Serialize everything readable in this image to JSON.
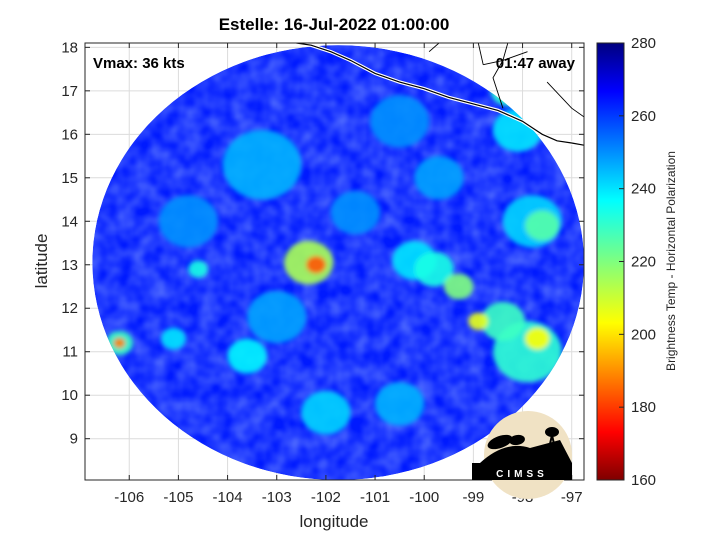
{
  "chart_data": {
    "type": "heatmap",
    "title": "Estelle: 16-Jul-2022 01:00:00",
    "xlabel": "longitude",
    "ylabel": "latitude",
    "xlim": [
      -106.9,
      -96.75
    ],
    "ylim": [
      8.05,
      18.1
    ],
    "xticks": [
      -106,
      -105,
      -104,
      -103,
      -102,
      -101,
      -100,
      -99,
      -98,
      -97
    ],
    "yticks": [
      9,
      10,
      11,
      12,
      13,
      14,
      15,
      16,
      17,
      18
    ],
    "grid": true,
    "annotations": {
      "vmax": "Vmax: 36 kts",
      "time_away": "01:47 away"
    },
    "colorbar": {
      "label": "Brightness Temp - Horizontal Polarization",
      "range": [
        160,
        280
      ],
      "ticks": [
        160,
        180,
        200,
        220,
        240,
        260,
        280
      ],
      "colormap": "jet"
    },
    "swath": {
      "center": [
        -101.75,
        13.05
      ],
      "radius_deg": 5.0
    },
    "background_bt": 262,
    "features": [
      {
        "lon": -102.2,
        "lat": 13.0,
        "bt": 185,
        "r": 0.2
      },
      {
        "lon": -102.35,
        "lat": 13.05,
        "bt": 215,
        "r": 0.5
      },
      {
        "lon": -106.2,
        "lat": 11.2,
        "bt": 190,
        "r": 0.12
      },
      {
        "lon": -106.2,
        "lat": 11.2,
        "bt": 228,
        "r": 0.28
      },
      {
        "lon": -97.7,
        "lat": 11.3,
        "bt": 205,
        "r": 0.25
      },
      {
        "lon": -97.9,
        "lat": 11.0,
        "bt": 230,
        "r": 0.7
      },
      {
        "lon": -98.4,
        "lat": 11.7,
        "bt": 228,
        "r": 0.45
      },
      {
        "lon": -98.9,
        "lat": 11.7,
        "bt": 208,
        "r": 0.2
      },
      {
        "lon": -99.3,
        "lat": 12.5,
        "bt": 220,
        "r": 0.3
      },
      {
        "lon": -99.8,
        "lat": 12.9,
        "bt": 232,
        "r": 0.4
      },
      {
        "lon": -100.2,
        "lat": 13.1,
        "bt": 238,
        "r": 0.45
      },
      {
        "lon": -97.6,
        "lat": 13.9,
        "bt": 225,
        "r": 0.35
      },
      {
        "lon": -97.8,
        "lat": 14.0,
        "bt": 240,
        "r": 0.6
      },
      {
        "lon": -98.3,
        "lat": 17.0,
        "bt": 230,
        "r": 0.35
      },
      {
        "lon": -98.1,
        "lat": 16.1,
        "bt": 238,
        "r": 0.5
      },
      {
        "lon": -103.3,
        "lat": 15.3,
        "bt": 244,
        "r": 0.8
      },
      {
        "lon": -103.0,
        "lat": 11.8,
        "bt": 246,
        "r": 0.6
      },
      {
        "lon": -104.6,
        "lat": 12.9,
        "bt": 232,
        "r": 0.2
      },
      {
        "lon": -105.1,
        "lat": 11.3,
        "bt": 238,
        "r": 0.25
      },
      {
        "lon": -103.6,
        "lat": 10.9,
        "bt": 236,
        "r": 0.4
      },
      {
        "lon": -102.0,
        "lat": 9.6,
        "bt": 240,
        "r": 0.5
      },
      {
        "lon": -100.5,
        "lat": 9.8,
        "bt": 244,
        "r": 0.5
      },
      {
        "lon": -99.7,
        "lat": 15.0,
        "bt": 246,
        "r": 0.5
      },
      {
        "lon": -100.5,
        "lat": 16.3,
        "bt": 248,
        "r": 0.6
      },
      {
        "lon": -101.4,
        "lat": 14.2,
        "bt": 248,
        "r": 0.5
      },
      {
        "lon": -104.8,
        "lat": 14.0,
        "bt": 248,
        "r": 0.6
      }
    ],
    "coastline": [
      [
        -102.6,
        18.1
      ],
      [
        -102.3,
        18.05
      ],
      [
        -101.9,
        17.9
      ],
      [
        -101.5,
        17.7
      ],
      [
        -101.0,
        17.4
      ],
      [
        -100.5,
        17.2
      ],
      [
        -100.0,
        17.05
      ],
      [
        -99.5,
        16.85
      ],
      [
        -99.0,
        16.7
      ],
      [
        -98.5,
        16.55
      ],
      [
        -98.0,
        16.3
      ],
      [
        -97.6,
        16.0
      ],
      [
        -97.3,
        15.85
      ],
      [
        -97.0,
        15.8
      ],
      [
        -96.75,
        15.75
      ]
    ],
    "borders": [
      [
        [
          -99.7,
          18.1
        ],
        [
          -99.9,
          17.9
        ]
      ],
      [
        [
          -98.3,
          18.1
        ],
        [
          -98.4,
          17.7
        ],
        [
          -98.6,
          17.3
        ],
        [
          -98.4,
          16.6
        ]
      ],
      [
        [
          -98.8,
          17.6
        ],
        [
          -98.4,
          17.7
        ],
        [
          -97.9,
          17.9
        ]
      ],
      [
        [
          -97.5,
          17.2
        ],
        [
          -97.0,
          16.6
        ],
        [
          -96.75,
          16.4
        ]
      ],
      [
        [
          -98.9,
          18.1
        ],
        [
          -98.8,
          17.6
        ]
      ]
    ]
  },
  "logo": {
    "text": "CIMSS"
  }
}
